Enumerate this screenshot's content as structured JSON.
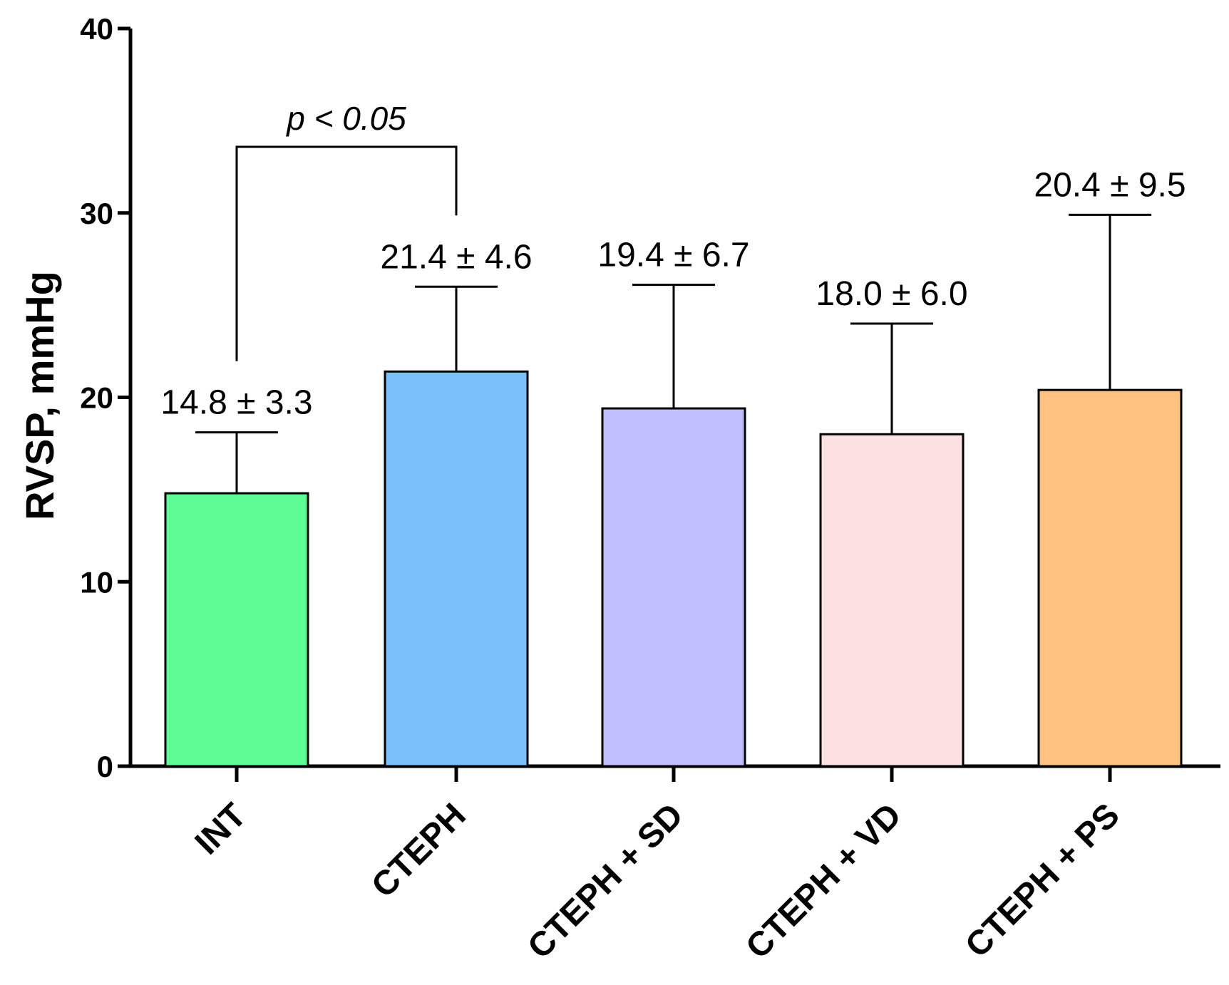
{
  "chart_data": {
    "type": "bar",
    "title": "",
    "xlabel": "",
    "ylabel": "RVSP, mmHg",
    "ylim": [
      0,
      40
    ],
    "yticks": [
      0,
      10,
      20,
      30,
      40
    ],
    "grid": false,
    "categories": [
      "INT",
      "CTEPH",
      "CTEPH + SD",
      "CTEPH + VD",
      "CTEPH + PS"
    ],
    "values": [
      14.8,
      21.4,
      19.4,
      18.0,
      20.4
    ],
    "errors": [
      3.3,
      4.6,
      6.7,
      6.0,
      9.5
    ],
    "data_labels": [
      "14.8 ± 3.3",
      "21.4 ± 4.6",
      "19.4 ± 6.7",
      "18.0 ± 6.0",
      "20.4 ± 9.5"
    ],
    "colors": [
      "#5efc95",
      "#7bbffb",
      "#c1befd",
      "#fde0e2",
      "#fec180"
    ],
    "annotations": [
      {
        "type": "significance_bracket",
        "from": "INT",
        "to": "CTEPH",
        "text": "p < 0.05"
      }
    ]
  }
}
